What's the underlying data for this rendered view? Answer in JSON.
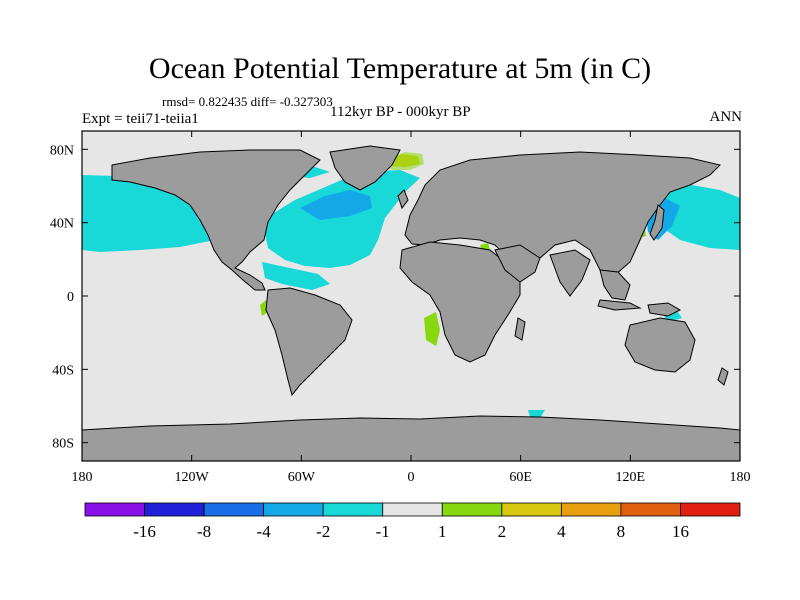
{
  "title": "Ocean Potential Temperature at 5m (in C)",
  "stats": "rmsd= 0.822435 diff= -0.327303",
  "experiment": "Expt = teii71-teiia1",
  "period": "112kyr BP - 000kyr BP",
  "season": "ANN",
  "axes": {
    "lat_ticks": [
      {
        "label": "80N",
        "lat": 80
      },
      {
        "label": "40N",
        "lat": 40
      },
      {
        "label": "0",
        "lat": 0
      },
      {
        "label": "40S",
        "lat": -40
      },
      {
        "label": "80S",
        "lat": -80
      }
    ],
    "lon_ticks": [
      {
        "label": "180",
        "lon": -180
      },
      {
        "label": "120W",
        "lon": -120
      },
      {
        "label": "60W",
        "lon": -60
      },
      {
        "label": "0",
        "lon": 0
      },
      {
        "label": "60E",
        "lon": 60
      },
      {
        "label": "120E",
        "lon": 120
      },
      {
        "label": "180",
        "lon": 180
      }
    ]
  },
  "colors": {
    "land": "#9c9c9c",
    "ocean_neutral": "#e6e6e6"
  },
  "colorbar": {
    "levels": [
      "-16",
      "-8",
      "-4",
      "-2",
      "-1",
      "1",
      "2",
      "4",
      "8",
      "16"
    ],
    "colors": [
      "#8a10e8",
      "#2020d8",
      "#1a6ee8",
      "#14a8e8",
      "#18d8d8",
      "#e6e6e6",
      "#88d810",
      "#d8c810",
      "#e8a010",
      "#e06010",
      "#e02010"
    ]
  }
}
